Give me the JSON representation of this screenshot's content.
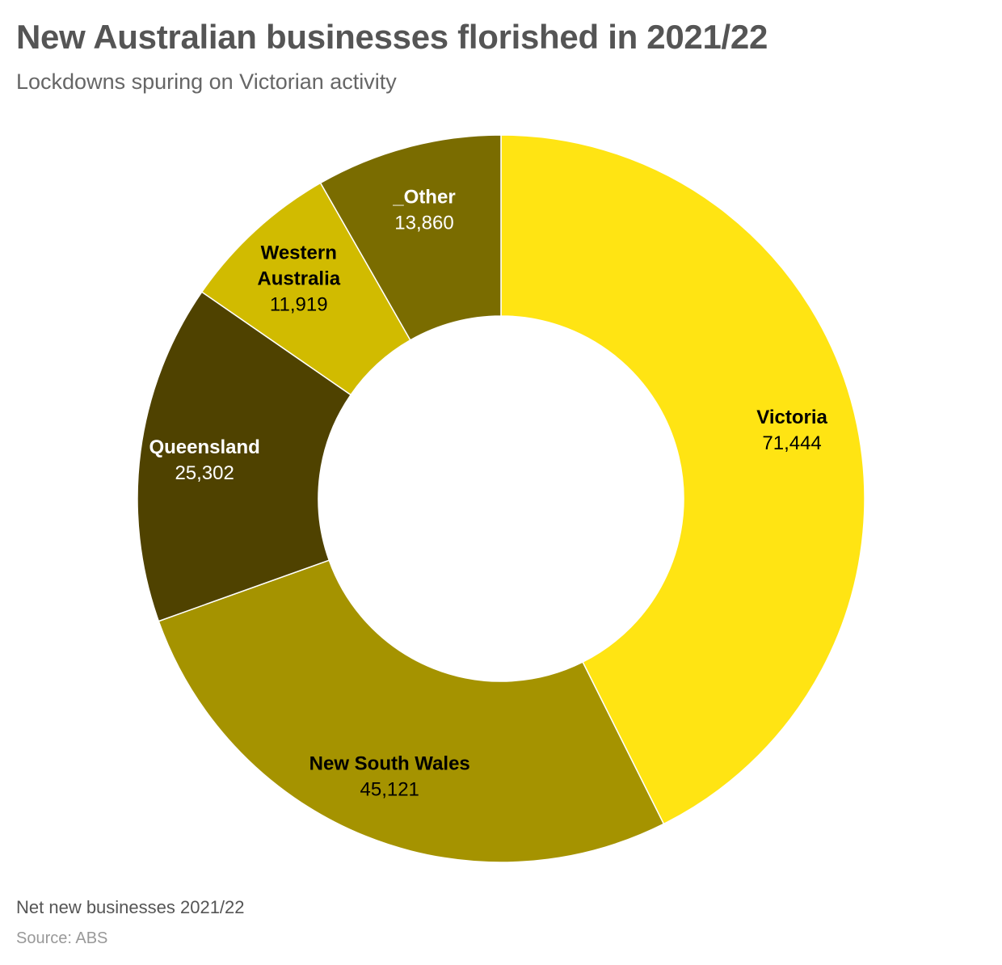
{
  "header": {
    "title": "New Australian businesses florished in 2021/22",
    "subtitle": "Lockdowns spuring on Victorian activity"
  },
  "footer": {
    "note": "Net new businesses 2021/22",
    "source": "Source: ABS"
  },
  "chart_data": {
    "type": "pie",
    "donut": true,
    "title": "New Australian businesses florished in 2021/22",
    "subtitle": "Lockdowns spuring on Victorian activity",
    "legend": "none",
    "series": [
      {
        "categories": [
          "Victoria",
          "New South Wales",
          "Queensland",
          "Western Australia",
          "_Other"
        ],
        "labels": [
          [
            "Victoria"
          ],
          [
            "New South Wales"
          ],
          [
            "Queensland"
          ],
          [
            "Western",
            "Australia"
          ],
          [
            "_Other"
          ]
        ],
        "display_values": [
          "71,444",
          "45,121",
          "25,302",
          "11,919",
          "13,860"
        ],
        "values": [
          71444,
          45121,
          25302,
          11919,
          13860
        ],
        "colors": [
          "#FFE413",
          "#A59300",
          "#4F4200",
          "#D1BB00",
          "#7A6C00"
        ],
        "label_colors": [
          "#000000",
          "#000000",
          "#ffffff",
          "#000000",
          "#ffffff"
        ]
      }
    ]
  }
}
